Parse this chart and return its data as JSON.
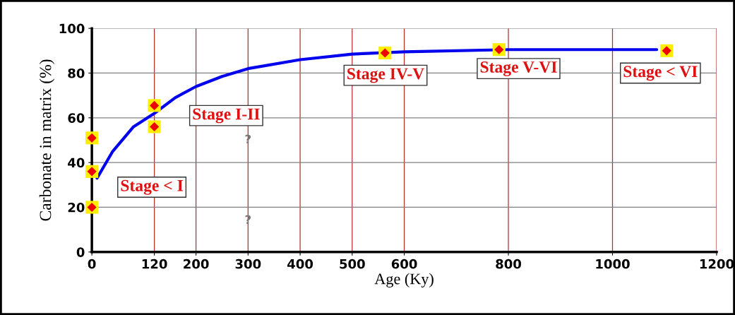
{
  "chart_data": {
    "type": "line",
    "xlabel": "Age (Ky)",
    "ylabel": "Carbonate in matrix (%)",
    "xlim": [
      0,
      1200
    ],
    "ylim": [
      0,
      100
    ],
    "xticks": [
      0,
      120,
      200,
      300,
      400,
      500,
      600,
      800,
      1000,
      1200
    ],
    "yticks": [
      0,
      20,
      40,
      60,
      80,
      100
    ],
    "grid": true,
    "series": [
      {
        "color": "#0000ee",
        "x": [
          10,
          40,
          80,
          120,
          160,
          200,
          250,
          300,
          400,
          500,
          600,
          800,
          1085
        ],
        "values": [
          33,
          45,
          56,
          62,
          69,
          74,
          78.5,
          82,
          86,
          88.5,
          89.5,
          90.5,
          90.5
        ]
      },
      {
        "type": "scatter",
        "marker": "diamond",
        "color": "#ee0000",
        "x": [
          0,
          0,
          0,
          120,
          120,
          563,
          782,
          1104
        ],
        "values": [
          51,
          36,
          20,
          65.5,
          56,
          89,
          90.5,
          90
        ]
      }
    ],
    "annotations": [
      "Stage < I",
      "Stage I-II",
      "Stage IV-V",
      "Stage V-VI",
      "Stage < VI",
      "?",
      "?"
    ]
  }
}
